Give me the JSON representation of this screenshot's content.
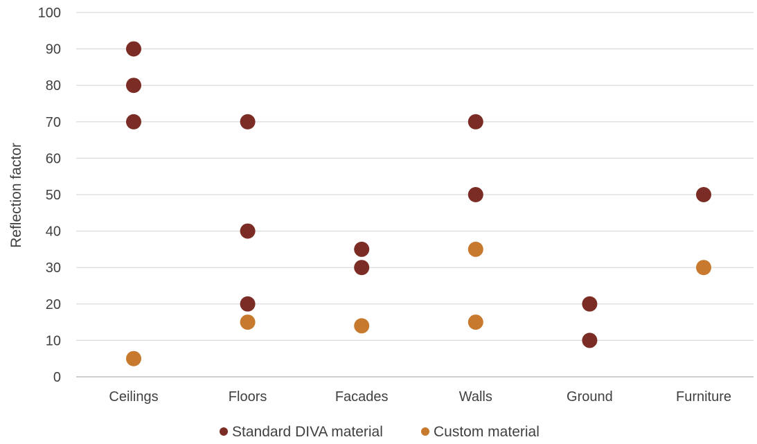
{
  "chart_data": {
    "type": "scatter",
    "categories": [
      "Ceilings",
      "Floors",
      "Facades",
      "Walls",
      "Ground",
      "Furniture"
    ],
    "ylabel": "Reflection factor",
    "xlabel": "",
    "title": "",
    "ylim": [
      0,
      100
    ],
    "yticks": [
      0,
      10,
      20,
      30,
      40,
      50,
      60,
      70,
      80,
      90,
      100
    ],
    "grid": true,
    "legend_position": "bottom",
    "series": [
      {
        "name": "Standard DIVA material",
        "color": "#7b2c25",
        "points": [
          {
            "category": "Ceilings",
            "y": 90
          },
          {
            "category": "Ceilings",
            "y": 80
          },
          {
            "category": "Ceilings",
            "y": 70
          },
          {
            "category": "Floors",
            "y": 70
          },
          {
            "category": "Floors",
            "y": 40
          },
          {
            "category": "Floors",
            "y": 20
          },
          {
            "category": "Facades",
            "y": 35
          },
          {
            "category": "Facades",
            "y": 30
          },
          {
            "category": "Walls",
            "y": 70
          },
          {
            "category": "Walls",
            "y": 50
          },
          {
            "category": "Ground",
            "y": 20
          },
          {
            "category": "Ground",
            "y": 10
          },
          {
            "category": "Furniture",
            "y": 50
          }
        ]
      },
      {
        "name": "Custom material",
        "color": "#c77a2e",
        "points": [
          {
            "category": "Ceilings",
            "y": 5
          },
          {
            "category": "Floors",
            "y": 15
          },
          {
            "category": "Facades",
            "y": 14
          },
          {
            "category": "Walls",
            "y": 35
          },
          {
            "category": "Walls",
            "y": 15
          },
          {
            "category": "Furniture",
            "y": 30
          }
        ]
      }
    ]
  }
}
